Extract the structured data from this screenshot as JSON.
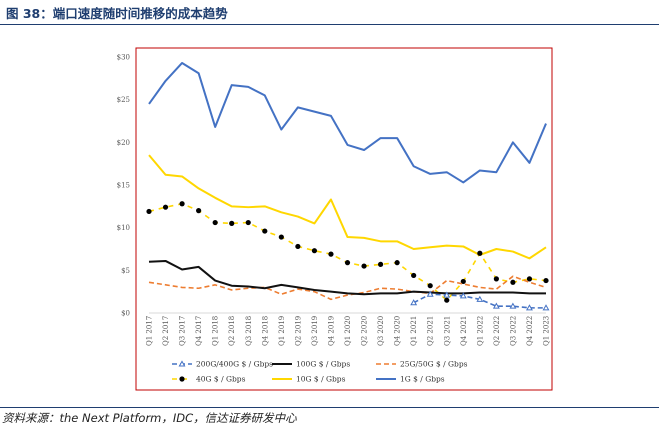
{
  "header": {
    "figure_title": "图 38：端口速度随时间推移的成本趋势",
    "source_note": "资料来源：the Next Platform，IDC，信达证券研发中心"
  },
  "chart_data": {
    "type": "line",
    "x": [
      "Q1 2017",
      "Q2 2017",
      "Q3 2017",
      "Q4 2017",
      "Q1 2018",
      "Q2 2018",
      "Q3 2018",
      "Q4 2018",
      "Q1 2019",
      "Q2 2019",
      "Q3 2019",
      "Q4 2019",
      "Q1 2020",
      "Q2 2020",
      "Q3 2020",
      "Q4 2020",
      "Q1 2021",
      "Q2 2021",
      "Q3 2021",
      "Q4 2021",
      "Q1 2022",
      "Q2 2022",
      "Q3 2022",
      "Q4 2022",
      "Q1 2023"
    ],
    "y_ticks": [
      "$0",
      "$5",
      "$10",
      "$15",
      "$20",
      "$25",
      "$30"
    ],
    "ylim": [
      0,
      30
    ],
    "grid": false,
    "legend_position": "bottom",
    "series": [
      {
        "name": "200G/400G $ / Gbps",
        "color": "#4472c4",
        "style": "dash-triangle",
        "values": [
          null,
          null,
          null,
          null,
          null,
          null,
          null,
          null,
          null,
          null,
          null,
          null,
          null,
          null,
          null,
          null,
          1.2,
          2.2,
          2.1,
          2.0,
          1.6,
          0.8,
          0.8,
          0.6,
          0.6
        ]
      },
      {
        "name": "100G $ / Gbps",
        "color": "#111111",
        "style": "solid",
        "values": [
          6.0,
          6.1,
          5.1,
          5.4,
          3.8,
          3.2,
          3.1,
          2.9,
          3.3,
          3.0,
          2.7,
          2.5,
          2.3,
          2.2,
          2.3,
          2.3,
          2.5,
          2.4,
          2.3,
          2.3,
          2.4,
          2.4,
          2.4,
          2.3,
          2.3
        ]
      },
      {
        "name": "25G/50G $ / Gbps",
        "color": "#ed7d31",
        "style": "dash",
        "values": [
          3.6,
          3.3,
          3.0,
          2.9,
          3.3,
          2.7,
          2.9,
          3.0,
          2.2,
          2.8,
          2.5,
          1.6,
          2.1,
          2.4,
          2.9,
          2.8,
          2.5,
          2.3,
          3.8,
          3.4,
          3.0,
          2.8,
          4.3,
          3.6,
          3.0
        ]
      },
      {
        "name": "40G $ / Gbps",
        "color": "#ffd700",
        "style": "dash-dot",
        "values": [
          11.9,
          12.4,
          12.8,
          12.0,
          10.6,
          10.5,
          10.6,
          9.6,
          8.9,
          7.8,
          7.3,
          6.9,
          5.9,
          5.5,
          5.7,
          5.9,
          4.4,
          3.2,
          1.5,
          3.7,
          7.0,
          4.0,
          3.6,
          4.0,
          3.8
        ]
      },
      {
        "name": "10G $ / Gbps",
        "color": "#ffd700",
        "style": "solid",
        "values": [
          18.5,
          16.2,
          16.0,
          14.6,
          13.5,
          12.5,
          12.4,
          12.5,
          11.8,
          11.3,
          10.5,
          13.3,
          8.9,
          8.8,
          8.4,
          8.4,
          7.5,
          7.7,
          7.9,
          7.8,
          6.8,
          7.5,
          7.2,
          6.4,
          7.7
        ]
      },
      {
        "name": "1G $ / Gbps",
        "color": "#4472c4",
        "style": "solid",
        "values": [
          24.5,
          27.2,
          29.3,
          28.1,
          21.8,
          26.7,
          26.5,
          25.5,
          21.5,
          24.1,
          23.6,
          23.1,
          19.7,
          19.1,
          20.5,
          20.5,
          17.2,
          16.3,
          16.5,
          15.3,
          16.7,
          16.5,
          20.0,
          17.6,
          22.2
        ]
      }
    ]
  }
}
